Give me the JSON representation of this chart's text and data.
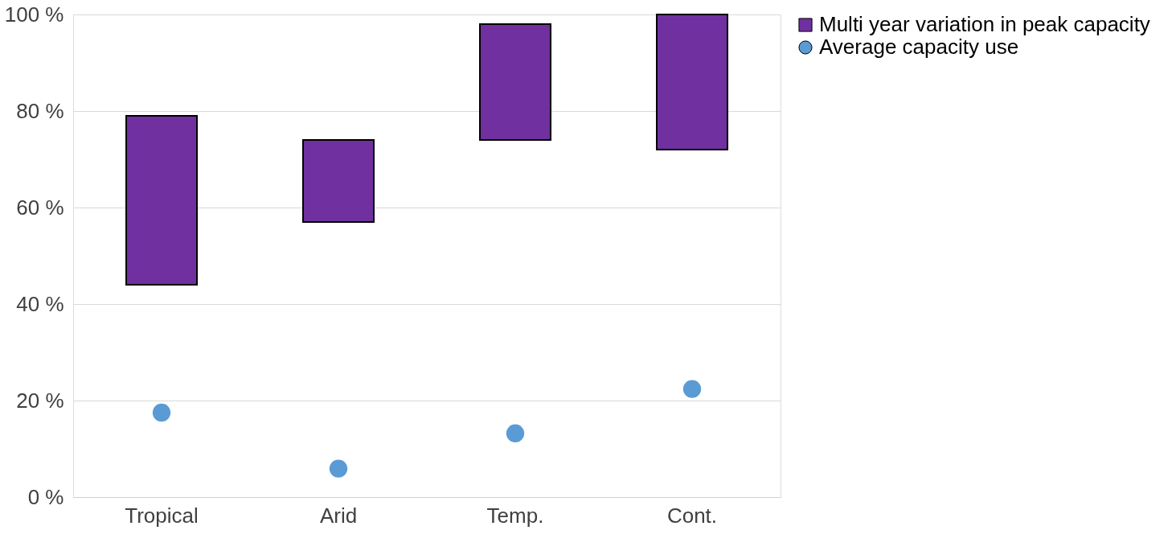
{
  "chart_data": {
    "type": "bar",
    "categories": [
      "Tropical",
      "Arid",
      "Temp.",
      "Cont."
    ],
    "series": [
      {
        "name": "Multi year variation in peak capacity",
        "color": "#7030a0",
        "base": [
          44,
          57,
          74,
          72
        ],
        "values": [
          35,
          17,
          24,
          28
        ]
      },
      {
        "name": "Average capacity use",
        "type": "scatter",
        "color": "#5b9bd5",
        "values": [
          17.5,
          5.9,
          13.2,
          22.4
        ]
      }
    ],
    "ylim": [
      0,
      100
    ],
    "yticks": [
      {
        "value": 0,
        "label": "0 %"
      },
      {
        "value": 20,
        "label": "20 %"
      },
      {
        "value": 40,
        "label": "40 %"
      },
      {
        "value": 60,
        "label": "60 %"
      },
      {
        "value": 80,
        "label": "80 %"
      },
      {
        "value": 100,
        "label": "100 %"
      }
    ],
    "grid": "y",
    "legend": "right"
  }
}
